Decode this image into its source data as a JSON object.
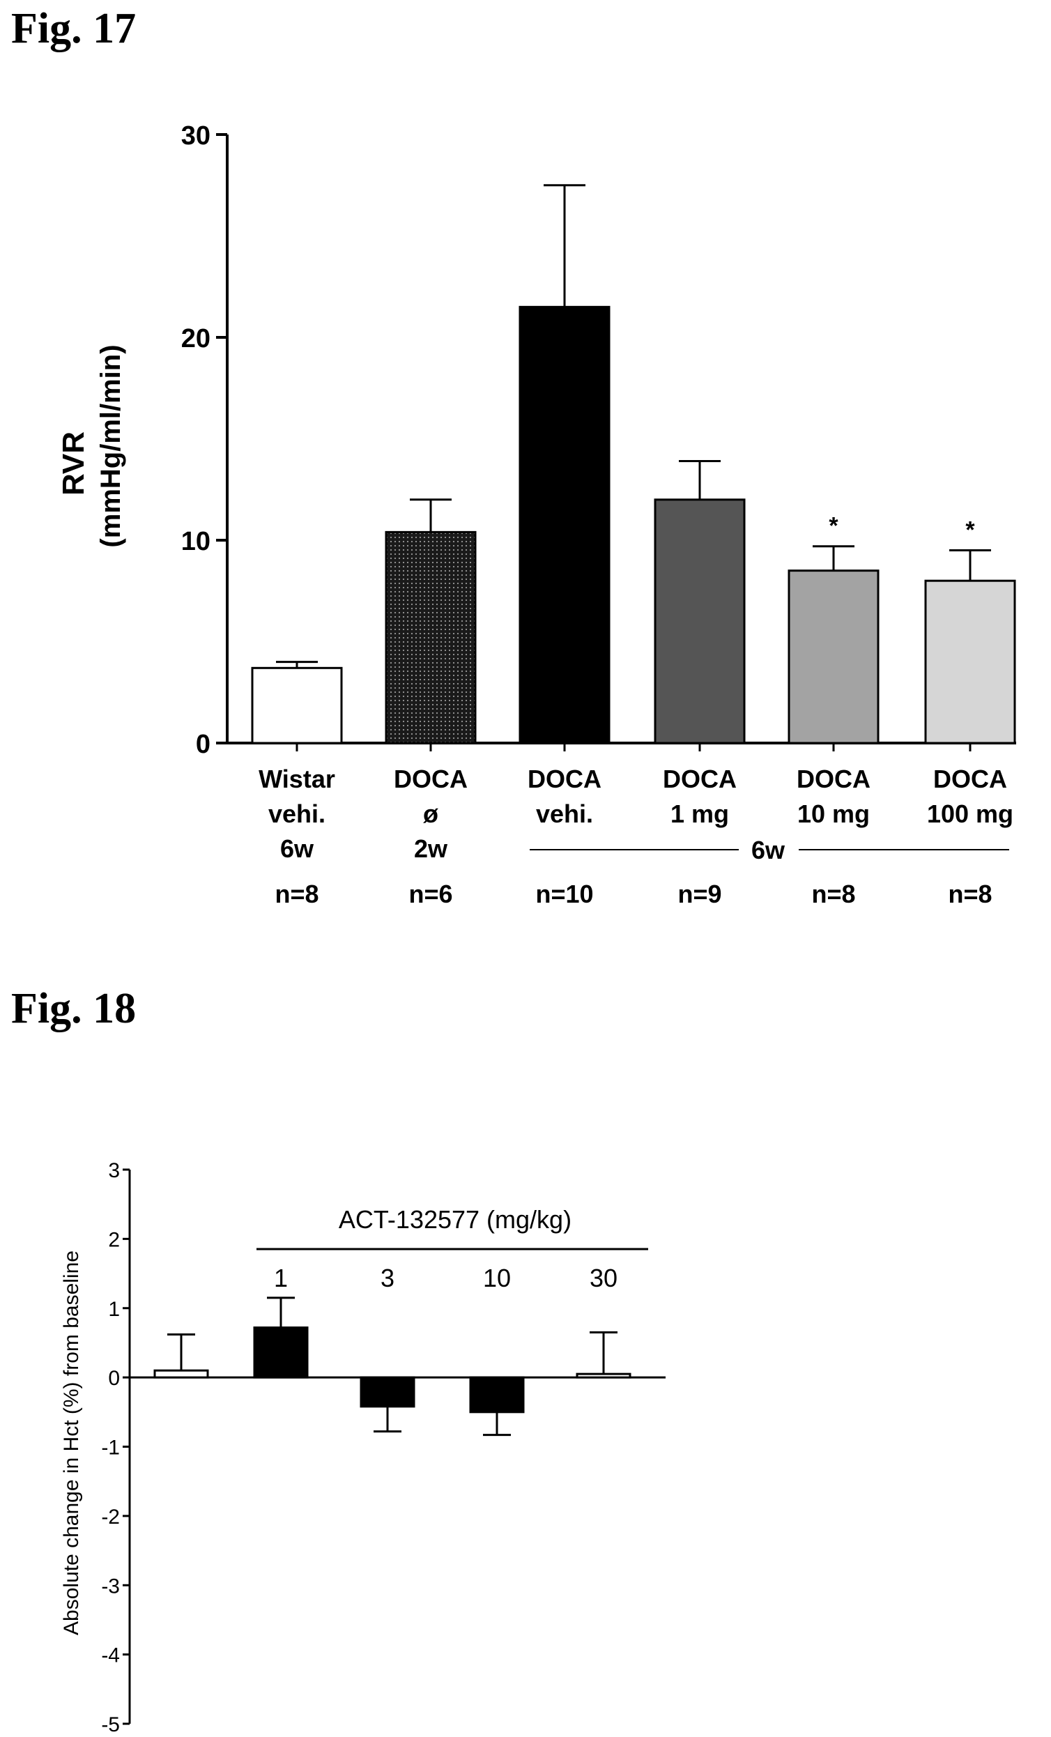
{
  "figures": {
    "fig17_title": "Fig. 17",
    "fig18_title": "Fig. 18"
  },
  "chart_data": [
    {
      "type": "bar",
      "ylabel": "RVR",
      "ylabel_unit": "(mmHg/ml/min)",
      "ylim": [
        0,
        30
      ],
      "yticks": [
        "0",
        "10",
        "20",
        "30"
      ],
      "categories": [
        [
          "Wistar",
          "vehi.",
          "6w"
        ],
        [
          "DOCA",
          "ø",
          "2w"
        ],
        [
          "DOCA",
          "vehi."
        ],
        [
          "DOCA",
          "1 mg"
        ],
        [
          "DOCA",
          "10 mg"
        ],
        [
          "DOCA",
          "100 mg"
        ]
      ],
      "values": [
        3.7,
        10.4,
        21.5,
        12.0,
        8.5,
        8.0
      ],
      "errors": [
        0.3,
        1.6,
        6.0,
        1.9,
        1.2,
        1.5
      ],
      "n_labels": [
        "n=8",
        "n=6",
        "n=10",
        "n=9",
        "n=8",
        "n=8"
      ],
      "significance": [
        "",
        "",
        "",
        "",
        "*",
        "*"
      ],
      "group_label": "6w",
      "bar_colors": [
        "#ffffff",
        "#2b2b2b",
        "#000000",
        "#555555",
        "#a3a3a3",
        "#d6d6d6"
      ]
    },
    {
      "type": "bar",
      "ylabel": "Absolute change in Hct (%) from baseline",
      "ylim": [
        -5,
        3
      ],
      "yticks": [
        "3",
        "2",
        "1",
        "0",
        "-1",
        "-2",
        "-3",
        "-4",
        "-5"
      ],
      "group_label": "ACT-132577 (mg/kg)",
      "categories": [
        "",
        "1",
        "3",
        "10",
        "30"
      ],
      "values": [
        0.1,
        0.72,
        -0.42,
        -0.5,
        0.05
      ],
      "errors": [
        0.52,
        0.43,
        0.36,
        0.33,
        0.6
      ],
      "bar_colors": [
        "#ffffff",
        "#000000",
        "#000000",
        "#000000",
        "#ffffff"
      ]
    }
  ]
}
